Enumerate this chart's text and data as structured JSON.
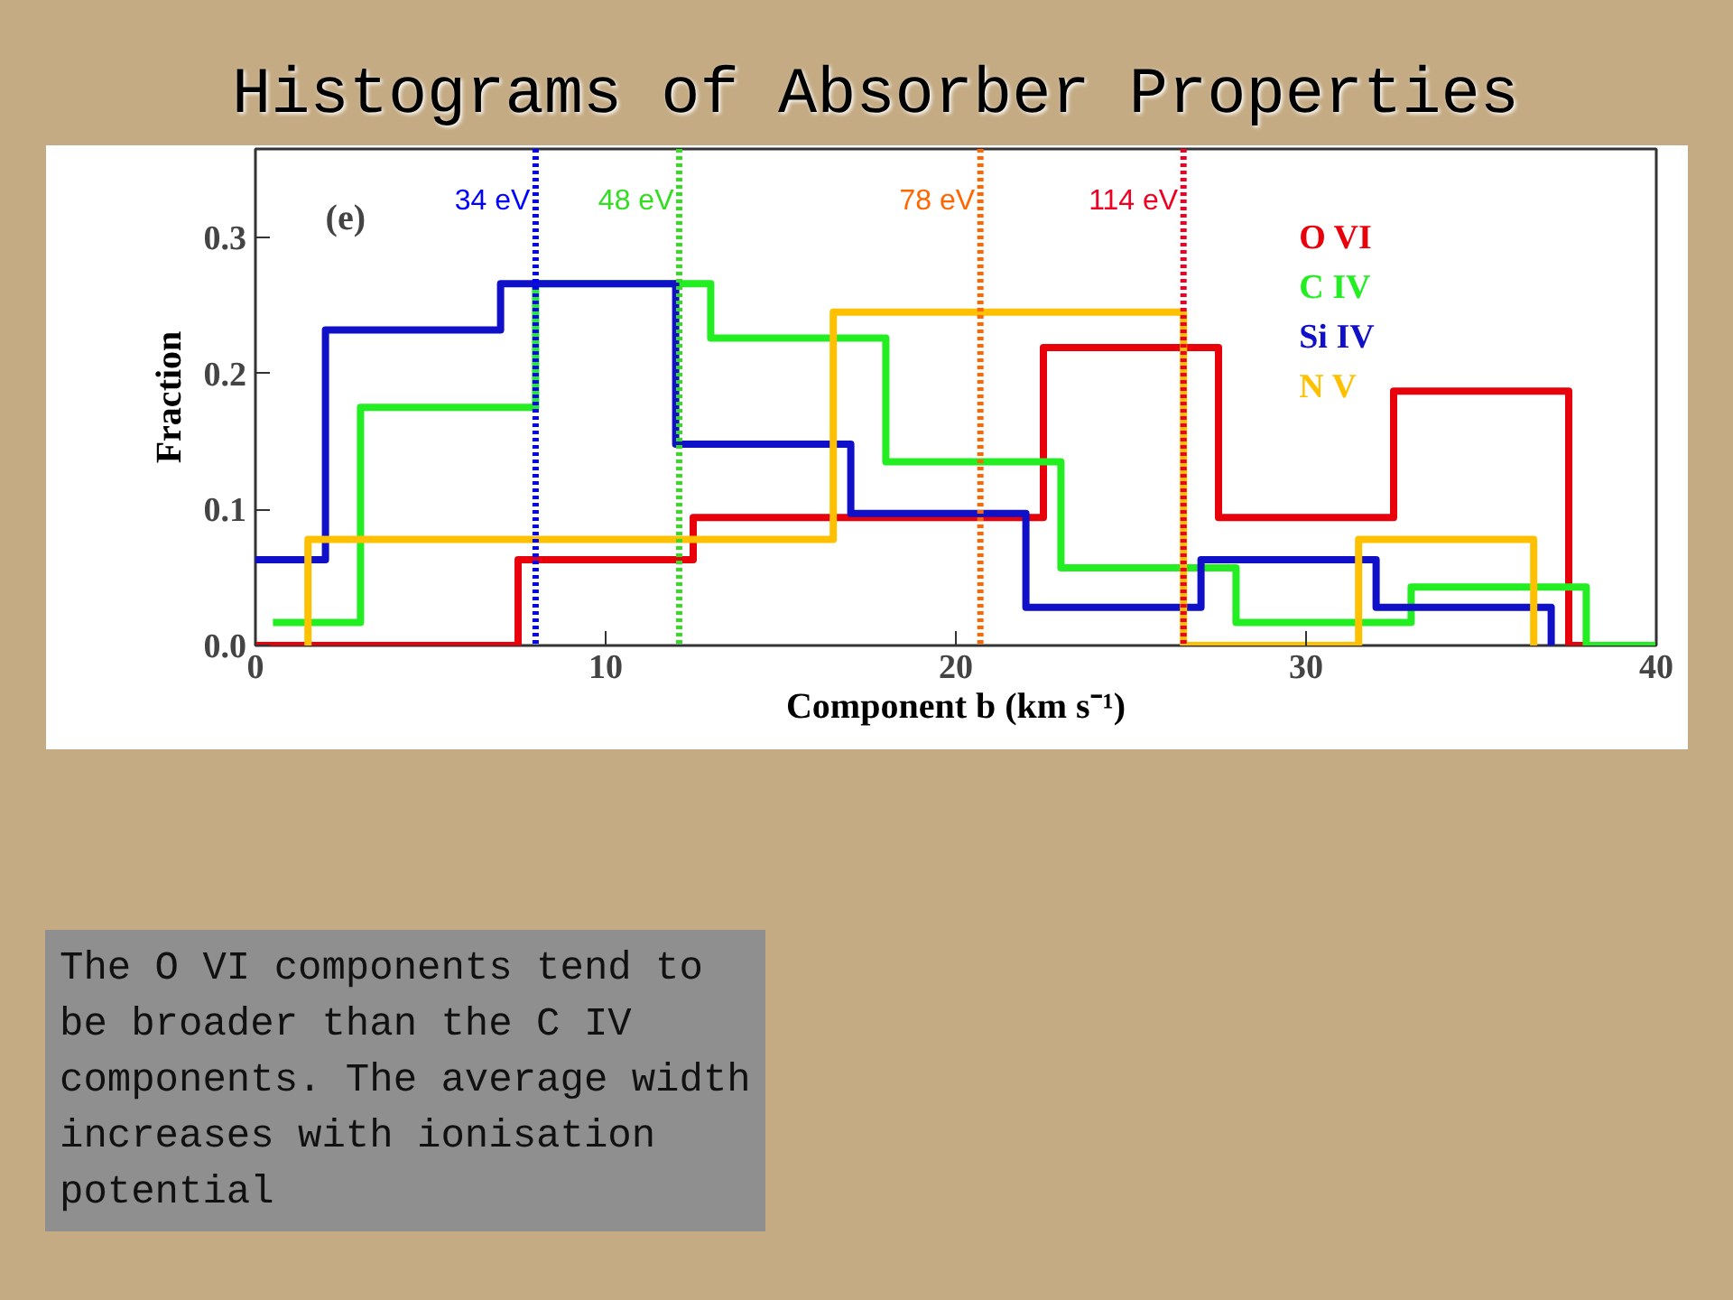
{
  "chart_data": {
    "type": "step",
    "title": "Histograms of Absorber Properties",
    "xlabel": "Component b (km s⁻¹)",
    "ylabel": "Fraction",
    "series": [
      {
        "name": "O VI",
        "color": "#e8000b",
        "x": [
          0,
          7.5,
          12.5,
          22.5,
          27.5,
          32.5,
          37.5,
          40
        ],
        "values": [
          0,
          0.063,
          0.094,
          0.219,
          0.094,
          0.187,
          0,
          0
        ]
      },
      {
        "name": "C IV",
        "color": "#22ee22",
        "x": [
          0.5,
          3,
          8,
          13,
          18,
          23,
          28,
          33,
          38,
          40
        ],
        "values": [
          0.017,
          0.175,
          0.266,
          0.226,
          0.135,
          0.057,
          0.017,
          0.043,
          0,
          0
        ]
      },
      {
        "name": "Si IV",
        "color": "#1010c8",
        "x": [
          0,
          2,
          7,
          12,
          17,
          22,
          27,
          32,
          37
        ],
        "values": [
          0.063,
          0.232,
          0.266,
          0.148,
          0.097,
          0.028,
          0.063,
          0.028,
          0
        ]
      },
      {
        "name": "N V",
        "color": "#ffc000",
        "x": [
          1.5,
          1.5,
          16.5,
          26.5,
          31.5,
          36.5
        ],
        "values": [
          0,
          0.078,
          0.245,
          0,
          0.078,
          0
        ]
      }
    ],
    "xlim": [
      0,
      40
    ],
    "ylim": [
      0,
      0.365
    ],
    "xticks": [
      0,
      10,
      20,
      30,
      40
    ],
    "yticks": [
      {
        "value": 0,
        "label": "0.0"
      },
      {
        "value": 0.1,
        "label": "0.1"
      },
      {
        "value": 0.2,
        "label": "0.2"
      },
      {
        "value": 0.3,
        "label": "0.3"
      }
    ],
    "ref_lines": [
      {
        "axis": "x",
        "value": 8,
        "label": "34 eV",
        "color": "#0000ff",
        "line_style": "dotted"
      },
      {
        "axis": "x",
        "value": 12.1,
        "label": "48 eV",
        "color": "#33dd22",
        "line_style": "dotted"
      },
      {
        "axis": "x",
        "value": 20.7,
        "label": "78 eV",
        "color": "#ff6600",
        "line_style": "dotted"
      },
      {
        "axis": "x",
        "value": 26.5,
        "label": "114 eV",
        "color": "#ee0022",
        "line_style": "dotted"
      }
    ],
    "annotations": [
      "(e)",
      "The O VI components tend to be broader than the C IV components. The average width increases with ionisation potential"
    ],
    "grid": false
  }
}
